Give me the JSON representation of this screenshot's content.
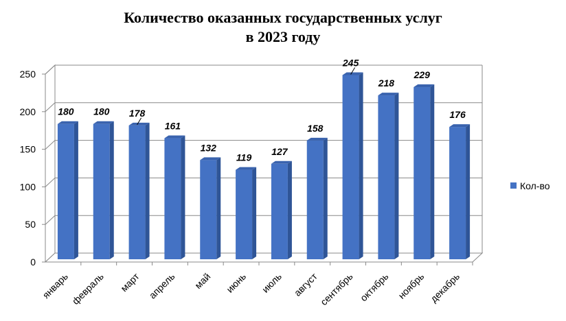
{
  "chart_data": {
    "type": "bar",
    "title": [
      "Количество оказанных государственных услуг",
      "в 2023 году"
    ],
    "categories": [
      "январь",
      "февраль",
      "март",
      "апрель",
      "май",
      "июнь",
      "июль",
      "август",
      "сентябрь",
      "октябрь",
      "ноябрь",
      "декабрь"
    ],
    "series": [
      {
        "name": "Кол-во",
        "values": [
          180,
          180,
          178,
          161,
          132,
          119,
          127,
          158,
          245,
          218,
          229,
          176
        ]
      }
    ],
    "ylim": [
      0,
      250
    ],
    "yticks": [
      "0",
      "50",
      "100",
      "150",
      "200",
      "250"
    ],
    "xlabel": "",
    "ylabel": "",
    "grid": true,
    "legend_position": "right",
    "bar_color": "#4472C4",
    "bar_side_color": "#2F5597",
    "bar_top_color": "#3A63AE",
    "data_labels": [
      "180",
      "180",
      "178",
      "161",
      "132",
      "119",
      "127",
      "158",
      "245",
      "218",
      "229",
      "176"
    ]
  }
}
